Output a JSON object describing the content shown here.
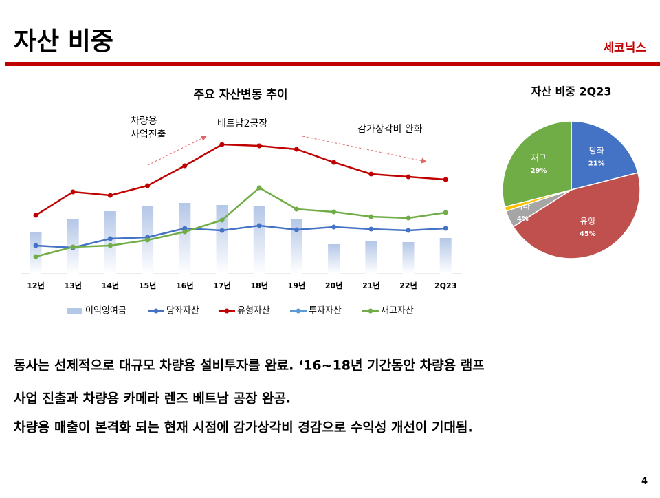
{
  "header": {
    "title": "자산 비중",
    "company": "세코닉스"
  },
  "chart_data": [
    {
      "type": "combo",
      "title": "주요 자산변동 추이",
      "categories": [
        "12년",
        "13년",
        "14년",
        "15년",
        "16년",
        "17년",
        "18년",
        "19년",
        "20년",
        "21년",
        "22년",
        "2Q23"
      ],
      "ylim": [
        0,
        100
      ],
      "series": [
        {
          "name": "이익잉여금",
          "type": "bar",
          "color": "#b4c7e7",
          "values": [
            30,
            39.5,
            45.5,
            49,
            51.5,
            50,
            49,
            39.5,
            21.5,
            23.5,
            23,
            26
          ]
        },
        {
          "name": "당좌자산",
          "type": "line",
          "color": "#4472c4",
          "values": [
            20.5,
            19,
            25.5,
            26.5,
            33,
            31.5,
            35,
            32,
            34,
            32.5,
            31.5,
            33
          ]
        },
        {
          "name": "유형자산",
          "type": "line",
          "color": "#c00000",
          "values": [
            42.5,
            59.5,
            57,
            64,
            78.5,
            94,
            93,
            90.5,
            81,
            72.5,
            70.5,
            68.5
          ]
        },
        {
          "name": "투자자산",
          "type": "line",
          "color": "#5b9bd5",
          "values": [
            null,
            null,
            null,
            null,
            null,
            null,
            null,
            null,
            null,
            null,
            null,
            null
          ]
        },
        {
          "name": "재고자산",
          "type": "line",
          "color": "#70ad47",
          "values": [
            12.5,
            19.5,
            20.5,
            24.5,
            30.5,
            39,
            62.5,
            47,
            45,
            41.5,
            40.5,
            44.5
          ]
        }
      ],
      "annotations": [
        "차량용\n사업진출",
        "베트남2공장",
        "감가상각비 완화"
      ]
    },
    {
      "type": "pie",
      "title": "자산 비중 2Q23",
      "categories": [
        "당좌",
        "유형",
        "기타",
        null,
        "재고"
      ],
      "values": [
        21,
        45,
        4,
        1,
        29
      ],
      "value_labels": [
        "21%",
        "45%",
        "4%",
        null,
        "29%"
      ],
      "colors": [
        "#4472c4",
        "#c0504d",
        "#a5a5a5",
        "#ffc000",
        "#70ad47"
      ]
    }
  ],
  "body": {
    "lines": [
      "동사는 선제적으로 대규모 차량용 설비투자를 완료. ‘16~18년 기간동안 차량용 램프",
      "사업 진출과 차량용 카메라 렌즈 베트남 공장 완공.",
      "차량용 매출이 본격화 되는 현재 시점에 감가상각비 경감으로 수익성 개선이 기대됨."
    ]
  },
  "page_number": "4"
}
